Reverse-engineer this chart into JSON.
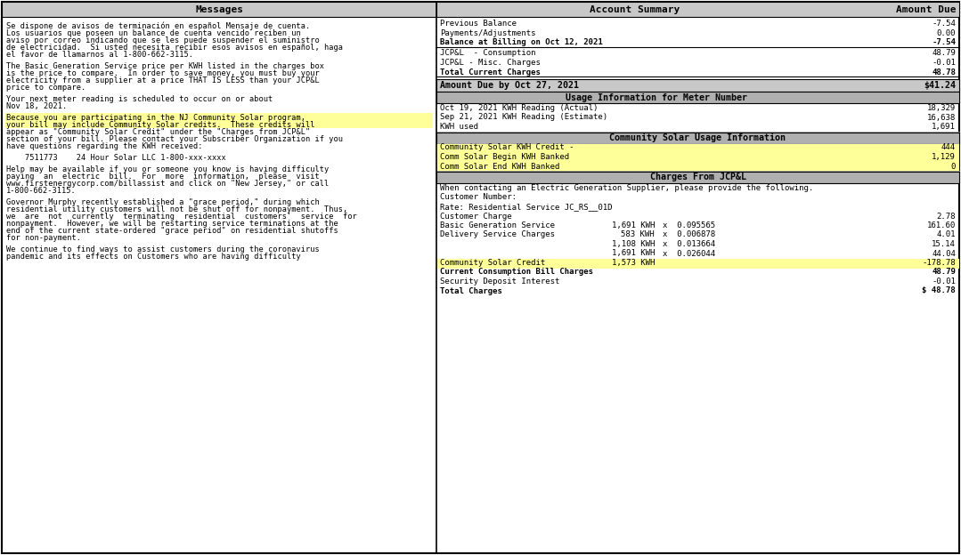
{
  "fig_width": 10.79,
  "fig_height": 6.24,
  "bg_color": "#ffffff",
  "header_bg": "#c8c8c8",
  "yellow_bg": "#ffff99",
  "dark_header_bg": "#b0b0b0",
  "divX": 490,
  "topY": 2,
  "botY": 622,
  "leftX": 2,
  "rightX": 1077,
  "left_panel": {
    "header": "Messages",
    "paragraphs": [
      {
        "text": "Se dispone de avisos de terminación en español Mensaje de cuenta.\nLos usuarios que poseen un balance de cuenta vencido reciben un\naviso por correo indicando que se les puede suspender el suministro\nde electricidad.  Si usted necesita recibir esos avisos en español, haga\nel favor de llamarnos al 1-800-662-3115.",
        "highlight": false
      },
      {
        "text": "The Basic Generation Service price per KWH listed in the charges box\nis the price to compare.  In order to save money, you must buy your\nelectricity from a supplier at a price THAT IS LESS than your JCP&L\nprice to compare.",
        "highlight": false
      },
      {
        "text": "Your next meter reading is scheduled to occur on or about\nNov 18, 2021.",
        "highlight": false
      },
      {
        "text": "Because you are participating in the NJ Community Solar program,\nyour bill may include Community Solar credits.  These credits will\nappear as \"Community Solar Credit\" under the \"Charges from JCP&L\"\nsection of your bill. Please contact your Subscriber Organization if you\nhave questions regarding the KWH received:",
        "highlight": true,
        "highlight_lines": 2
      },
      {
        "text": "    7511773    24 Hour Solar LLC 1-800-xxx-xxxx",
        "highlight": false
      },
      {
        "text": "Help may be available if you or someone you know is having difficulty\npaying  an  electric  bill.  For  more  information,  please  visit\nwww.firstenergycorp.com/billassist and click on \"New Jersey,\" or call\n1-800-662-3115.",
        "highlight": false
      },
      {
        "text": "Governor Murphy recently established a \"grace period,\" during which\nresidential utility customers will not be shut off for nonpayment.  Thus,\nwe  are  not  currently  terminating  residential  customers'  service  for\nnonpayment.  However, we will be restarting service terminations at the\nend of the current state-ordered \"grace period\" on residential shutoffs\nfor non-payment.",
        "highlight": false
      },
      {
        "text": "We continue to find ways to assist customers during the coronavirus\npandemic and its effects on Customers who are having difficulty",
        "highlight": false
      }
    ]
  },
  "right_panel": {
    "header_left": "Account Summary",
    "header_right": "Amount Due",
    "account_summary": [
      {
        "label": "Previous Balance",
        "value": "-7.54",
        "bold": false
      },
      {
        "label": "Payments/Adjustments",
        "value": "0.00",
        "bold": false
      },
      {
        "label": "Balance at Billing on Oct 12, 2021",
        "value": "-7.54",
        "bold": true
      }
    ],
    "current_charges": [
      {
        "label": "JCP&L  - Consumption",
        "value": "48.79",
        "bold": false
      },
      {
        "label": "JCP&L - Misc. Charges",
        "value": "-0.01",
        "bold": false
      },
      {
        "label": "Total Current Charges",
        "value": "48.78",
        "bold": true
      }
    ],
    "amount_due_label": "Amount Due by Oct 27, 2021",
    "amount_due_value": "$41.24",
    "usage_header": "Usage Information for Meter Number",
    "usage_rows": [
      {
        "label": "Oct 19, 2021 KWH Reading (Actual)",
        "value": "18,329"
      },
      {
        "label": "Sep 21, 2021 KWH Reading (Estimate)",
        "value": "16,638"
      },
      {
        "label": "KWH used",
        "value": "1,691"
      }
    ],
    "solar_usage_header": "Community Solar Usage Information",
    "solar_usage_rows": [
      {
        "label": "Community Solar KWH Credit -",
        "value": "444"
      },
      {
        "label": "Comm Solar Begin KWH Banked",
        "value": "1,129"
      },
      {
        "label": "Comm Solar End KWH Banked",
        "value": "0"
      }
    ],
    "charges_header": "Charges From JCP&L",
    "charges_intro": [
      "When contacting an Electric Generation Supplier, please provide the following.",
      "Customer Number:",
      "Rate: Residential Service JC_RS__01D"
    ],
    "charges_rows": [
      {
        "label": "Customer Charge",
        "col2": "",
        "col3": "",
        "value": "2.78",
        "bold": false,
        "highlight": false
      },
      {
        "label": "Basic Generation Service",
        "col2": "1,691 KWH",
        "col3": "x  0.095565",
        "value": "161.60",
        "bold": false,
        "highlight": false
      },
      {
        "label": "Delivery Service Charges",
        "col2": "583 KWH",
        "col3": "x  0.006878",
        "value": "4.01",
        "bold": false,
        "highlight": false
      },
      {
        "label": "",
        "col2": "1,108 KWH",
        "col3": "x  0.013664",
        "value": "15.14",
        "bold": false,
        "highlight": false
      },
      {
        "label": "",
        "col2": "1,691 KWH",
        "col3": "x  0.026044",
        "value": "44.04",
        "bold": false,
        "highlight": false
      },
      {
        "label": "Community Solar Credit",
        "col2": "1,573 KWH",
        "col3": "",
        "value": "-178.78",
        "bold": false,
        "highlight": true
      }
    ],
    "bottom_rows": [
      {
        "label": "Current Consumption Bill Charges",
        "value": "48.79",
        "bold": true
      },
      {
        "label": "Security Deposit Interest",
        "value": "-0.01",
        "bold": false
      },
      {
        "label": "Total Charges",
        "value": "$ 48.78",
        "bold": true
      }
    ]
  }
}
